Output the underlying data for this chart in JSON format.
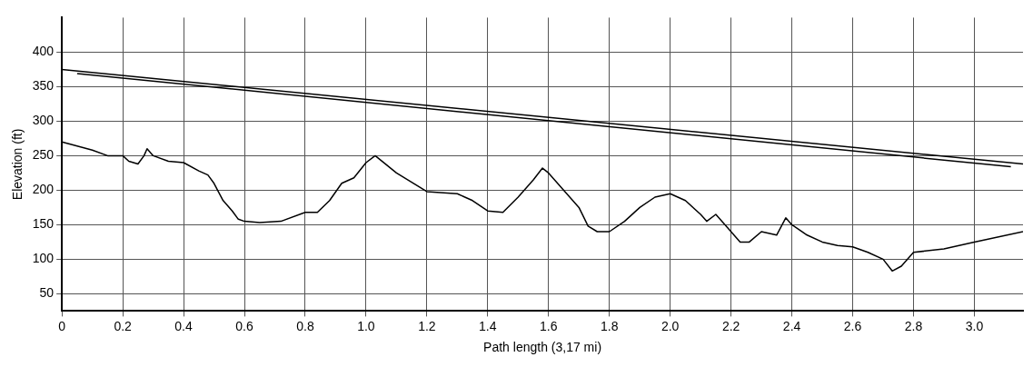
{
  "chart_data": {
    "type": "line",
    "xlabel": "Path length (3,17 mi)",
    "ylabel": "Elevation (ft)",
    "xlim": [
      0,
      3.16
    ],
    "ylim": [
      25,
      450
    ],
    "xticks": [
      0,
      0.2,
      0.4,
      0.6,
      0.8,
      {
        "value": 1,
        "label": "1.0"
      },
      1.2,
      1.4,
      1.6,
      1.8,
      {
        "value": 2,
        "label": "2.0"
      },
      2.2,
      2.4,
      2.6,
      2.8,
      {
        "value": 3,
        "label": "3.0"
      }
    ],
    "yticks": [
      50,
      100,
      150,
      200,
      250,
      300,
      350,
      400
    ],
    "grid": true,
    "marker": "none",
    "line_style": "solid",
    "series": [
      {
        "color": "#000000",
        "x": [
          0,
          3.16
        ],
        "values": [
          375,
          238
        ]
      },
      {
        "color": "#000000",
        "x": [
          0.05,
          3.12
        ],
        "values": [
          369,
          234
        ]
      },
      {
        "color": "#000000",
        "x": [
          0,
          0.1,
          0.15,
          0.2,
          0.22,
          0.25,
          0.27,
          0.28,
          0.3,
          0.35,
          0.4,
          0.45,
          0.48,
          0.5,
          0.53,
          0.56,
          0.58,
          0.6,
          0.65,
          0.72,
          0.8,
          0.84,
          0.88,
          0.92,
          0.96,
          1,
          1.03,
          1.1,
          1.2,
          1.3,
          1.35,
          1.4,
          1.45,
          1.5,
          1.55,
          1.58,
          1.6,
          1.65,
          1.7,
          1.73,
          1.76,
          1.8,
          1.85,
          1.9,
          1.95,
          2,
          2.05,
          2.1,
          2.12,
          2.15,
          2.2,
          2.23,
          2.26,
          2.3,
          2.35,
          2.38,
          2.4,
          2.45,
          2.5,
          2.55,
          2.6,
          2.65,
          2.7,
          2.73,
          2.76,
          2.8,
          2.9,
          3,
          3.16
        ],
        "values": [
          270,
          258,
          250,
          250,
          242,
          238,
          250,
          260,
          250,
          242,
          240,
          228,
          222,
          210,
          185,
          170,
          158,
          155,
          153,
          155,
          168,
          168,
          185,
          210,
          218,
          240,
          250,
          225,
          198,
          195,
          185,
          170,
          168,
          190,
          215,
          232,
          225,
          200,
          175,
          148,
          140,
          140,
          155,
          175,
          190,
          195,
          185,
          165,
          155,
          165,
          140,
          125,
          125,
          140,
          135,
          160,
          150,
          135,
          125,
          120,
          118,
          110,
          100,
          83,
          90,
          110,
          115,
          125,
          140
        ]
      }
    ]
  }
}
